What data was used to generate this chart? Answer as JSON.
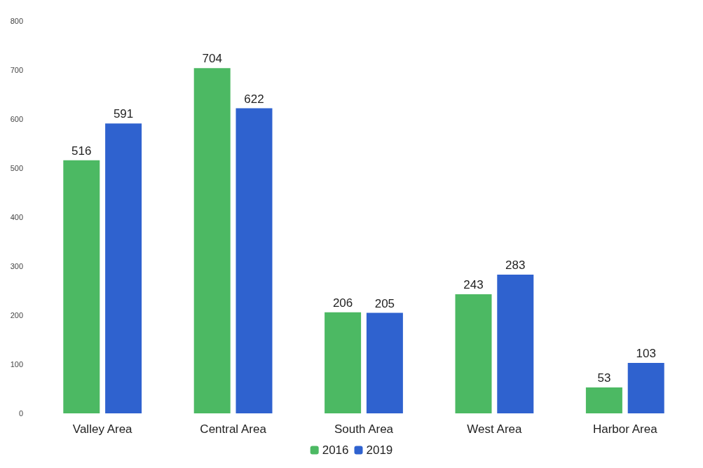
{
  "chart_data": {
    "type": "bar",
    "categories": [
      "Valley Area",
      "Central Area",
      "South Area",
      "West Area",
      "Harbor Area"
    ],
    "series": [
      {
        "name": "2016",
        "color": "#4cb963",
        "values": [
          516,
          704,
          206,
          243,
          53
        ]
      },
      {
        "name": "2019",
        "color": "#2f62cf",
        "values": [
          591,
          622,
          205,
          283,
          103
        ]
      }
    ],
    "ylim": [
      0,
      800
    ],
    "yticks": [
      0,
      100,
      200,
      300,
      400,
      500,
      600,
      700,
      800
    ],
    "grid": false,
    "legend": "bottom",
    "data_labels": true
  }
}
